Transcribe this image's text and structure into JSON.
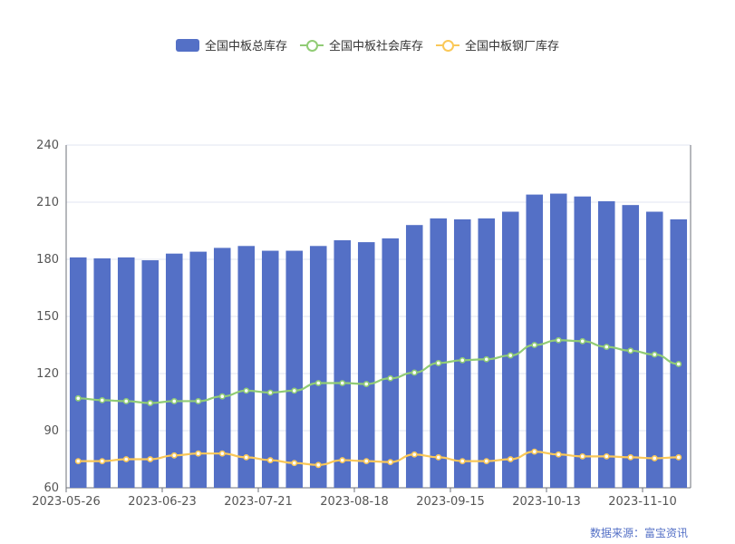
{
  "chart_data": {
    "type": "bar",
    "title": "",
    "xlabel": "",
    "ylabel": "",
    "ylim": [
      60,
      240
    ],
    "yticks": [
      60,
      90,
      120,
      150,
      180,
      210,
      240
    ],
    "xtick_labels": [
      "2023-05-26",
      "2023-06-23",
      "2023-07-21",
      "2023-08-18",
      "2023-09-15",
      "2023-10-13",
      "2023-11-10"
    ],
    "xtick_indices": [
      0,
      4,
      8,
      12,
      16,
      20,
      24
    ],
    "grid": true,
    "legend_position": "top-center",
    "source": "数据来源：富宝资讯",
    "x": [
      "2023-05-26",
      "2023-06-02",
      "2023-06-09",
      "2023-06-16",
      "2023-06-23",
      "2023-06-30",
      "2023-07-07",
      "2023-07-14",
      "2023-07-21",
      "2023-07-28",
      "2023-08-04",
      "2023-08-11",
      "2023-08-18",
      "2023-08-25",
      "2023-09-01",
      "2023-09-08",
      "2023-09-15",
      "2023-09-22",
      "2023-09-29",
      "2023-10-06",
      "2023-10-13",
      "2023-10-20",
      "2023-10-27",
      "2023-11-03",
      "2023-11-10",
      "2023-11-17"
    ],
    "series": [
      {
        "name": "全国中板总库存",
        "kind": "bar",
        "color": "#5470c6",
        "values": [
          181,
          180.5,
          181,
          179.5,
          183,
          184,
          186,
          187,
          184.5,
          184.5,
          187,
          190,
          189,
          191,
          198,
          201.5,
          201,
          201.5,
          205,
          214,
          214.5,
          213,
          210.5,
          208.5,
          205,
          201
        ]
      },
      {
        "name": "全国中板社会库存",
        "kind": "line",
        "color": "#91cc75",
        "values": [
          107,
          106,
          105.5,
          104.5,
          105.5,
          105.5,
          108,
          111,
          110,
          111,
          115,
          115,
          114.5,
          117.5,
          120.5,
          125.5,
          127,
          127.5,
          129.5,
          135,
          137.5,
          137,
          134,
          132,
          130,
          125
        ]
      },
      {
        "name": "全国中板钢厂库存",
        "kind": "line",
        "color": "#fac858",
        "values": [
          74,
          74,
          75,
          75,
          77,
          78,
          78,
          76,
          74.5,
          73,
          72,
          74.5,
          74,
          73.5,
          77.5,
          76,
          74,
          74,
          75,
          79,
          77.5,
          76.5,
          76.5,
          76,
          75.5,
          76
        ]
      }
    ]
  }
}
